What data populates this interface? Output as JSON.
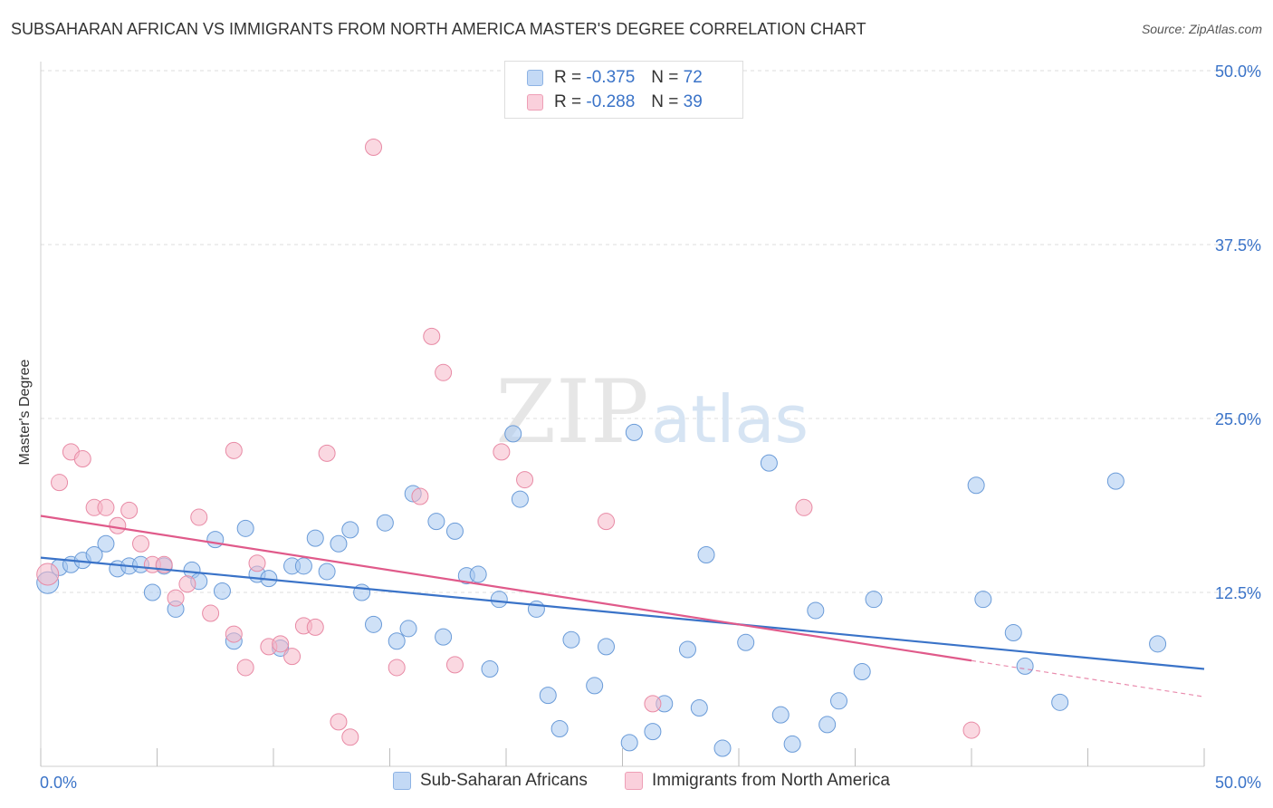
{
  "header": {
    "title": "SUBSAHARAN AFRICAN VS IMMIGRANTS FROM NORTH AMERICA MASTER'S DEGREE CORRELATION CHART",
    "source": "Source: ZipAtlas.com"
  },
  "watermark": {
    "zip": "ZIP",
    "atlas": "atlas"
  },
  "legend_top": [
    {
      "r_label": "R =",
      "r_value": "-0.375",
      "n_label": "N =",
      "n_value": "72",
      "color": "#a8c8f0"
    },
    {
      "r_label": "R =",
      "r_value": "-0.288",
      "n_label": "N =",
      "n_value": "39",
      "color": "#f5b8c8"
    }
  ],
  "legend_bottom": [
    {
      "label": "Sub-Saharan Africans",
      "color": "#a8c8f0"
    },
    {
      "label": "Immigrants from North America",
      "color": "#f5b8c8"
    }
  ],
  "chart_data": {
    "type": "scatter",
    "title": "SUBSAHARAN AFRICAN VS IMMIGRANTS FROM NORTH AMERICA MASTER'S DEGREE CORRELATION CHART",
    "xlabel": "",
    "ylabel": "Master's Degree",
    "xlim": [
      0,
      50
    ],
    "ylim": [
      0,
      50
    ],
    "x_tick_labels": [
      "0.0%",
      "50.0%"
    ],
    "y_tick_labels": [
      {
        "value": 50,
        "label": "50.0%"
      },
      {
        "value": 37.5,
        "label": "37.5%"
      },
      {
        "value": 25,
        "label": "25.0%"
      },
      {
        "value": 12.5,
        "label": "12.5%"
      }
    ],
    "grid": true,
    "legend_position": "top-center",
    "series": [
      {
        "name": "Sub-Saharan Africans",
        "color": "#a8c8f0",
        "stroke": "#6a9bd8",
        "trend": {
          "x": [
            0,
            50
          ],
          "y": [
            15.0,
            7.0
          ],
          "color": "#3a73c8"
        },
        "points": [
          [
            0.3,
            13.2
          ],
          [
            0.8,
            14.3
          ],
          [
            1.3,
            14.5
          ],
          [
            1.8,
            14.8
          ],
          [
            2.3,
            15.2
          ],
          [
            2.8,
            16.0
          ],
          [
            3.3,
            14.2
          ],
          [
            3.8,
            14.4
          ],
          [
            4.3,
            14.5
          ],
          [
            4.8,
            12.5
          ],
          [
            5.3,
            14.4
          ],
          [
            5.8,
            11.3
          ],
          [
            6.5,
            14.1
          ],
          [
            6.8,
            13.3
          ],
          [
            7.5,
            16.3
          ],
          [
            7.8,
            12.6
          ],
          [
            8.3,
            9.0
          ],
          [
            8.8,
            17.1
          ],
          [
            9.3,
            13.8
          ],
          [
            9.8,
            13.5
          ],
          [
            10.3,
            8.5
          ],
          [
            10.8,
            14.4
          ],
          [
            11.3,
            14.4
          ],
          [
            11.8,
            16.4
          ],
          [
            12.3,
            14.0
          ],
          [
            12.8,
            16.0
          ],
          [
            13.3,
            17.0
          ],
          [
            13.8,
            12.5
          ],
          [
            14.3,
            10.2
          ],
          [
            14.8,
            17.5
          ],
          [
            15.3,
            9.0
          ],
          [
            15.8,
            9.9
          ],
          [
            16.0,
            19.6
          ],
          [
            17.0,
            17.6
          ],
          [
            17.3,
            9.3
          ],
          [
            17.8,
            16.9
          ],
          [
            18.3,
            13.7
          ],
          [
            18.8,
            13.8
          ],
          [
            19.3,
            7.0
          ],
          [
            19.7,
            12.0
          ],
          [
            20.3,
            23.9
          ],
          [
            20.6,
            19.2
          ],
          [
            21.3,
            11.3
          ],
          [
            21.8,
            5.1
          ],
          [
            22.3,
            2.7
          ],
          [
            22.8,
            9.1
          ],
          [
            23.8,
            5.8
          ],
          [
            24.3,
            8.6
          ],
          [
            25.3,
            1.7
          ],
          [
            25.5,
            24.0
          ],
          [
            26.3,
            2.5
          ],
          [
            26.8,
            4.5
          ],
          [
            27.8,
            8.4
          ],
          [
            28.3,
            4.2
          ],
          [
            28.6,
            15.2
          ],
          [
            29.3,
            1.3
          ],
          [
            30.3,
            8.9
          ],
          [
            31.3,
            21.8
          ],
          [
            31.8,
            3.7
          ],
          [
            32.3,
            1.6
          ],
          [
            33.3,
            11.2
          ],
          [
            33.8,
            3.0
          ],
          [
            34.3,
            4.7
          ],
          [
            35.3,
            6.8
          ],
          [
            35.8,
            12.0
          ],
          [
            40.2,
            20.2
          ],
          [
            40.5,
            12.0
          ],
          [
            41.8,
            9.6
          ],
          [
            42.3,
            7.2
          ],
          [
            43.8,
            4.6
          ],
          [
            46.2,
            20.5
          ],
          [
            48.0,
            8.8
          ]
        ]
      },
      {
        "name": "Immigrants from North America",
        "color": "#f5b8c8",
        "stroke": "#e88aa5",
        "trend": {
          "x": [
            0,
            40
          ],
          "y": [
            18.0,
            7.6
          ],
          "color": "#e05a8a",
          "dashed_extension": {
            "x": [
              40,
              50
            ],
            "y": [
              7.6,
              5.0
            ]
          }
        },
        "points": [
          [
            0.3,
            13.8
          ],
          [
            0.8,
            20.4
          ],
          [
            1.3,
            22.6
          ],
          [
            1.8,
            22.1
          ],
          [
            2.3,
            18.6
          ],
          [
            2.8,
            18.6
          ],
          [
            3.3,
            17.3
          ],
          [
            3.8,
            18.4
          ],
          [
            4.3,
            16.0
          ],
          [
            4.8,
            14.5
          ],
          [
            5.3,
            14.5
          ],
          [
            5.8,
            12.1
          ],
          [
            6.3,
            13.1
          ],
          [
            6.8,
            17.9
          ],
          [
            7.3,
            11.0
          ],
          [
            8.3,
            22.7
          ],
          [
            8.3,
            9.5
          ],
          [
            8.8,
            7.1
          ],
          [
            9.3,
            14.6
          ],
          [
            9.8,
            8.6
          ],
          [
            10.3,
            8.8
          ],
          [
            10.8,
            7.9
          ],
          [
            11.3,
            10.1
          ],
          [
            11.8,
            10.0
          ],
          [
            12.3,
            22.5
          ],
          [
            12.8,
            3.2
          ],
          [
            13.3,
            2.1
          ],
          [
            14.3,
            44.5
          ],
          [
            15.3,
            7.1
          ],
          [
            16.3,
            19.4
          ],
          [
            16.8,
            30.9
          ],
          [
            17.3,
            28.3
          ],
          [
            17.8,
            7.3
          ],
          [
            19.8,
            22.6
          ],
          [
            20.8,
            20.6
          ],
          [
            24.3,
            17.6
          ],
          [
            26.3,
            4.5
          ],
          [
            32.8,
            18.6
          ],
          [
            40.0,
            2.6
          ]
        ]
      }
    ]
  }
}
